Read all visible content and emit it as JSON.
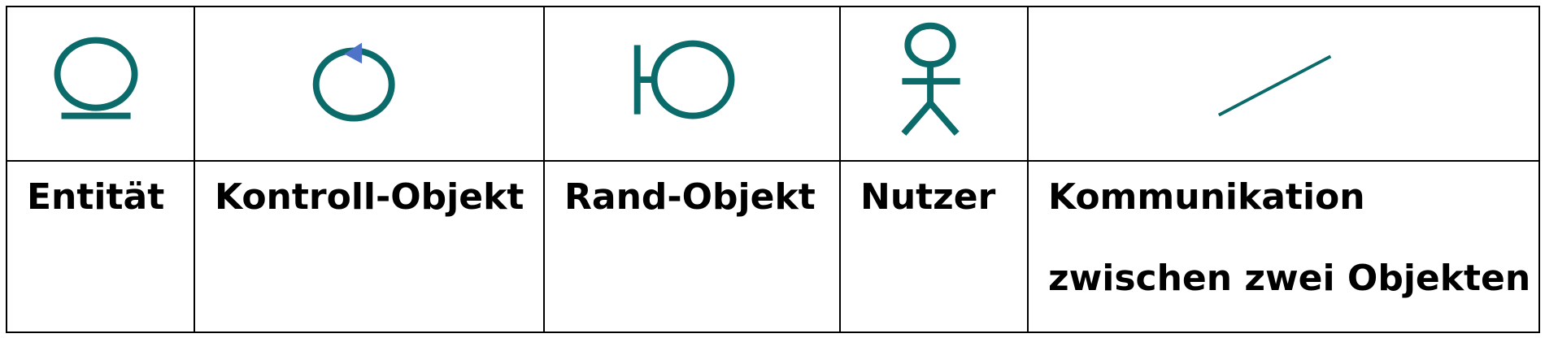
{
  "colors": {
    "symbol": "#0b6b6a",
    "arrow": "#4f73c9",
    "border": "#000000"
  },
  "columns": [
    {
      "icon": "entity-icon",
      "label": "Entität"
    },
    {
      "icon": "control-object-icon",
      "label": "Kontroll-Objekt"
    },
    {
      "icon": "boundary-object-icon",
      "label": "Rand-Objekt"
    },
    {
      "icon": "actor-icon",
      "label": "Nutzer"
    },
    {
      "icon": "communication-line-icon",
      "label_lines": [
        "Kommunikation",
        "zwischen zwei Objekten"
      ]
    }
  ]
}
